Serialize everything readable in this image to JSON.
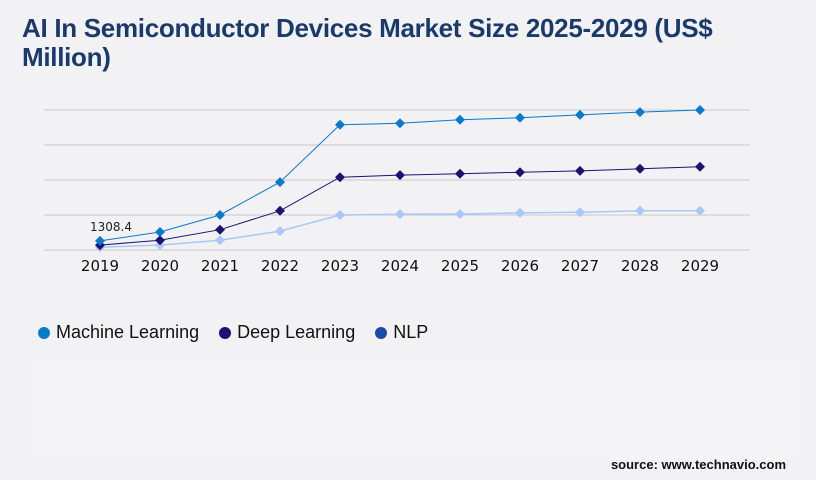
{
  "chart_data": {
    "type": "line",
    "title": "AI In Semiconductor Devices Market Size 2025-2029 (US$ Million)",
    "x": [
      "2019",
      "2020",
      "2021",
      "2022",
      "2023",
      "2024",
      "2025",
      "2026",
      "2027",
      "2028",
      "2029"
    ],
    "ylim": [
      0,
      20000
    ],
    "grid": true,
    "legend_position": "bottom-left",
    "series": [
      {
        "name": "Machine Learning",
        "color": "#0a7acb",
        "values": [
          1308.4,
          2570,
          5000,
          9700,
          17900,
          18100,
          18600,
          18900,
          19300,
          19700,
          20000
        ]
      },
      {
        "name": "Deep Learning",
        "color": "#1a1470",
        "values": [
          700,
          1400,
          2900,
          5600,
          10400,
          10700,
          10900,
          11100,
          11300,
          11600,
          11900
        ]
      },
      {
        "name": "NLP",
        "color": "#a9c8f5",
        "legend_color": "#1b4aa8",
        "values": [
          400,
          700,
          1400,
          2700,
          5000,
          5100,
          5150,
          5300,
          5400,
          5600,
          5600
        ]
      }
    ],
    "annotations": [
      {
        "x": "2019",
        "series": "Machine Learning",
        "text": "1308.4"
      }
    ]
  },
  "source": "source: www.technavio.com"
}
